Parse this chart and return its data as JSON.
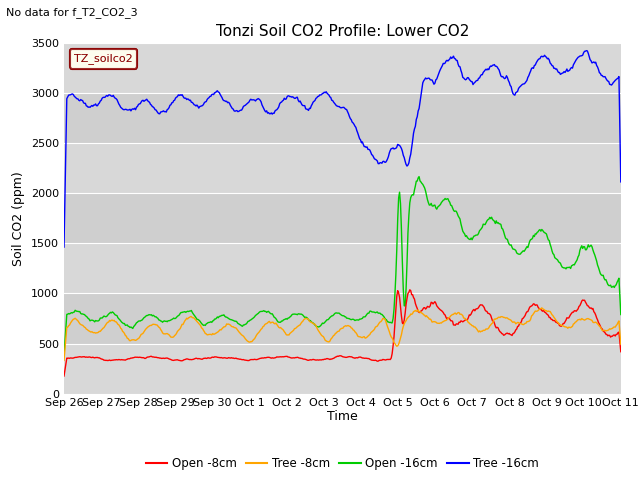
{
  "title": "Tonzi Soil CO2 Profile: Lower CO2",
  "subtitle": "No data for f_T2_CO2_3",
  "ylabel": "Soil CO2 (ppm)",
  "xlabel": "Time",
  "legend_label": "TZ_soilco2",
  "series_labels": [
    "Open -8cm",
    "Tree -8cm",
    "Open -16cm",
    "Tree -16cm"
  ],
  "series_colors": [
    "#ff0000",
    "#ffa500",
    "#00cc00",
    "#0000ff"
  ],
  "ylim": [
    0,
    3500
  ],
  "bg_color": "#d8d8d8",
  "fig_color": "#ffffff",
  "tick_labels": [
    "Sep 26",
    "Sep 27",
    "Sep 28",
    "Sep 29",
    "Sep 30",
    "Oct 1",
    "Oct 2",
    "Oct 3",
    "Oct 4",
    "Oct 5",
    "Oct 6",
    "Oct 7",
    "Oct 8",
    "Oct 9",
    "Oct 10",
    "Oct 11"
  ],
  "yticks": [
    0,
    500,
    1000,
    1500,
    2000,
    2500,
    3000,
    3500
  ]
}
